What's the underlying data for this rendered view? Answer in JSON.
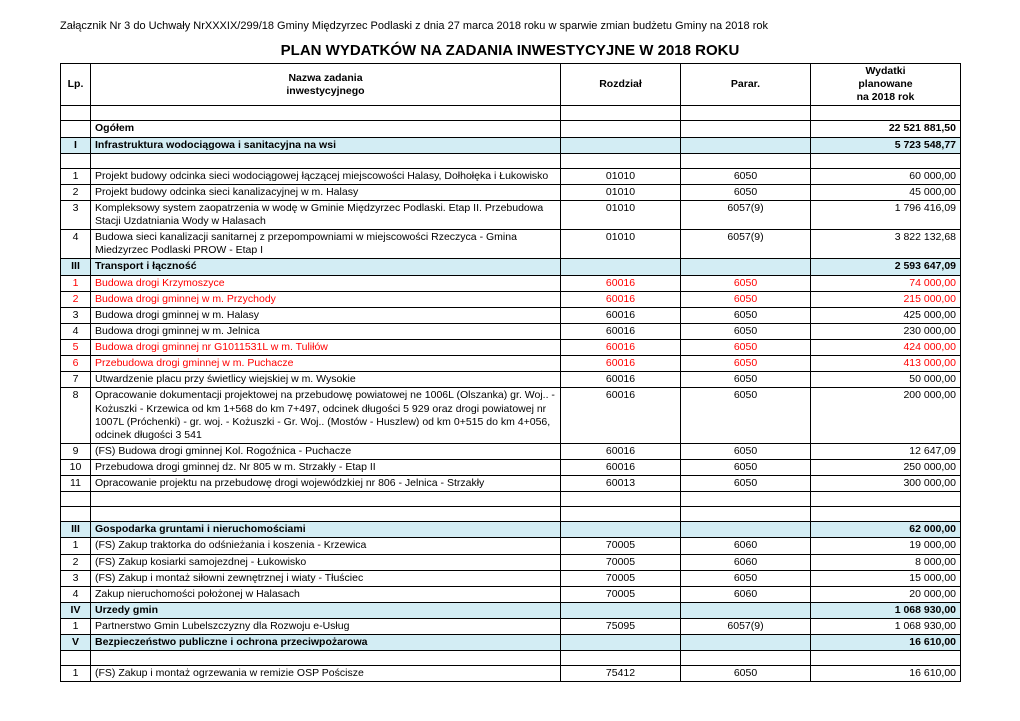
{
  "header_text": "Załącznik Nr 3 do Uchwały NrXXXIX/299/18  Gminy Międzyrzec Podlaski z dnia 27 marca 2018 roku w sparwie zmian budżetu Gminy na 2018 rok",
  "doc_title": "PLAN WYDATKÓW NA ZADANIA INWESTYCYJNE W 2018 ROKU",
  "columns": {
    "lp": "Lp.",
    "name_line1": "Nazwa zadania",
    "name_line2": "inwestycyjnego",
    "rozdzial": "Rozdział",
    "parar": "Parar.",
    "wydatki_line1": "Wydatki",
    "wydatki_line2": "planowane",
    "wydatki_line3": "na 2018 rok"
  },
  "rows": [
    {
      "type": "spacer"
    },
    {
      "type": "sum",
      "lp": "",
      "name": "Ogółem",
      "roz": "",
      "par": "",
      "wyd": "22 521 881,50"
    },
    {
      "type": "section",
      "lp": "I",
      "name": "Infrastruktura wodociągowa i sanitacyjna na wsi",
      "roz": "",
      "par": "",
      "wyd": "5 723 548,77"
    },
    {
      "type": "spacer"
    },
    {
      "type": "data",
      "lp": "1",
      "name": "Projekt budowy odcinka sieci wodociągowej łączącej miejscowości Halasy, Dołhołęka i Łukowisko",
      "roz": "01010",
      "par": "6050",
      "wyd": "60 000,00"
    },
    {
      "type": "data",
      "lp": "2",
      "name": "Projekt budowy odcinka sieci kanalizacyjnej w m. Halasy",
      "roz": "01010",
      "par": "6050",
      "wyd": "45 000,00"
    },
    {
      "type": "data",
      "lp": "3",
      "name": "Kompleksowy system zaopatrzenia w wodę w Gminie Międzyrzec Podlaski. Etap II. Przebudowa Stacji Uzdatniania Wody w Halasach",
      "roz": "01010",
      "par": "6057(9)",
      "wyd": "1 796 416,09"
    },
    {
      "type": "data",
      "lp": "4",
      "name": "Budowa sieci kanalizacji sanitarnej z przepompowniami w miejscowości Rzeczyca - Gmina Miedzyrzec Podlaski PROW - Etap I",
      "roz": "01010",
      "par": "6057(9)",
      "wyd": "3 822 132,68"
    },
    {
      "type": "section",
      "lp": "III",
      "name": "Transport i łączność",
      "roz": "",
      "par": "",
      "wyd": "2 593 647,09"
    },
    {
      "type": "red",
      "lp": "1",
      "name": "Budowa drogi Krzymoszyce",
      "roz": "60016",
      "par": "6050",
      "wyd": "74 000,00"
    },
    {
      "type": "red",
      "lp": "2",
      "name": "Budowa drogi gminnej w m. Przychody",
      "roz": "60016",
      "par": "6050",
      "wyd": "215 000,00"
    },
    {
      "type": "data",
      "lp": "3",
      "name": "Budowa drogi gminnej w m. Halasy",
      "roz": "60016",
      "par": "6050",
      "wyd": "425 000,00"
    },
    {
      "type": "data",
      "lp": "4",
      "name": "Budowa drogi gminnej w m. Jelnica",
      "roz": "60016",
      "par": "6050",
      "wyd": "230 000,00"
    },
    {
      "type": "red",
      "lp": "5",
      "name": "Budowa drogi gminnej nr G1011531L w m. Tuliłów",
      "roz": "60016",
      "par": "6050",
      "wyd": "424 000,00"
    },
    {
      "type": "red",
      "lp": "6",
      "name": "Przebudowa drogi gminnej w m. Puchacze",
      "roz": "60016",
      "par": "6050",
      "wyd": "413 000,00"
    },
    {
      "type": "data",
      "lp": "7",
      "name": "Utwardzenie placu przy świetlicy wiejskiej w m. Wysokie",
      "roz": "60016",
      "par": "6050",
      "wyd": "50 000,00"
    },
    {
      "type": "data",
      "lp": "8",
      "name": "Opracowanie dokumentacji projektowej na przebudowę powiatowej ne 1006L (Olszanka) gr. Woj.. - Kożuszki - Krzewica od km 1+568 do km 7+497, odcinek długości 5 929 oraz drogi powiatowej nr 1007L (Próchenki) - gr. woj. - Kożuszki - Gr. Woj.. (Mostów - Huszlew) od km 0+515 do km 4+056, odcinek długości 3 541",
      "roz": "60016",
      "par": "6050",
      "wyd": "200 000,00"
    },
    {
      "type": "data",
      "lp": "9",
      "name": "(FS) Budowa drogi gminnej Kol. Rogoźnica - Puchacze",
      "roz": "60016",
      "par": "6050",
      "wyd": "12 647,09"
    },
    {
      "type": "data",
      "lp": "10",
      "name": "Przebudowa drogi gminnej dz. Nr 805 w m. Strzakły - Etap II",
      "roz": "60016",
      "par": "6050",
      "wyd": "250 000,00"
    },
    {
      "type": "data",
      "lp": "11",
      "name": "Opracowanie projektu na przebudowę drogi wojewódzkiej nr 806 - Jelnica - Strzakły",
      "roz": "60013",
      "par": "6050",
      "wyd": "300 000,00"
    },
    {
      "type": "spacer"
    },
    {
      "type": "spacer"
    },
    {
      "type": "section",
      "lp": "III",
      "name": "Gospodarka gruntami i nieruchomościami",
      "roz": "",
      "par": "",
      "wyd": "62 000,00"
    },
    {
      "type": "data",
      "lp": "1",
      "name": "(FS) Zakup traktorka do odśnieżania i koszenia - Krzewica",
      "roz": "70005",
      "par": "6060",
      "wyd": "19 000,00"
    },
    {
      "type": "data",
      "lp": "2",
      "name": "(FS) Zakup kosiarki samojezdnej - Łukowisko",
      "roz": "70005",
      "par": "6060",
      "wyd": "8 000,00"
    },
    {
      "type": "data",
      "lp": "3",
      "name": "(FS) Zakup i montaż siłowni zewnętrznej i wiaty - Tłuściec",
      "roz": "70005",
      "par": "6050",
      "wyd": "15 000,00"
    },
    {
      "type": "data",
      "lp": "4",
      "name": "Zakup nieruchomości położonej w Halasach",
      "roz": "70005",
      "par": "6060",
      "wyd": "20 000,00"
    },
    {
      "type": "section",
      "lp": "IV",
      "name": "Urzedy gmin",
      "roz": "",
      "par": "",
      "wyd": "1 068 930,00"
    },
    {
      "type": "data",
      "lp": "1",
      "name": "Partnerstwo Gmin Lubelszczyzny dla Rozwoju e-Usług",
      "roz": "75095",
      "par": "6057(9)",
      "wyd": "1 068 930,00"
    },
    {
      "type": "section",
      "lp": "V",
      "name": "Bezpieczeństwo publiczne i ochrona przeciwpożarowa",
      "roz": "",
      "par": "",
      "wyd": "16 610,00"
    },
    {
      "type": "spacer"
    },
    {
      "type": "data",
      "lp": "1",
      "name": "(FS) Zakup i montaż ogrzewania w remizie OSP Pościsze",
      "roz": "75412",
      "par": "6050",
      "wyd": "16 610,00"
    }
  ],
  "colors": {
    "section_bg": "#d3edf4",
    "red_text": "#ff0000",
    "border": "#000000",
    "background": "#ffffff"
  },
  "fontsize_body": 10.5,
  "fontsize_title": 15
}
